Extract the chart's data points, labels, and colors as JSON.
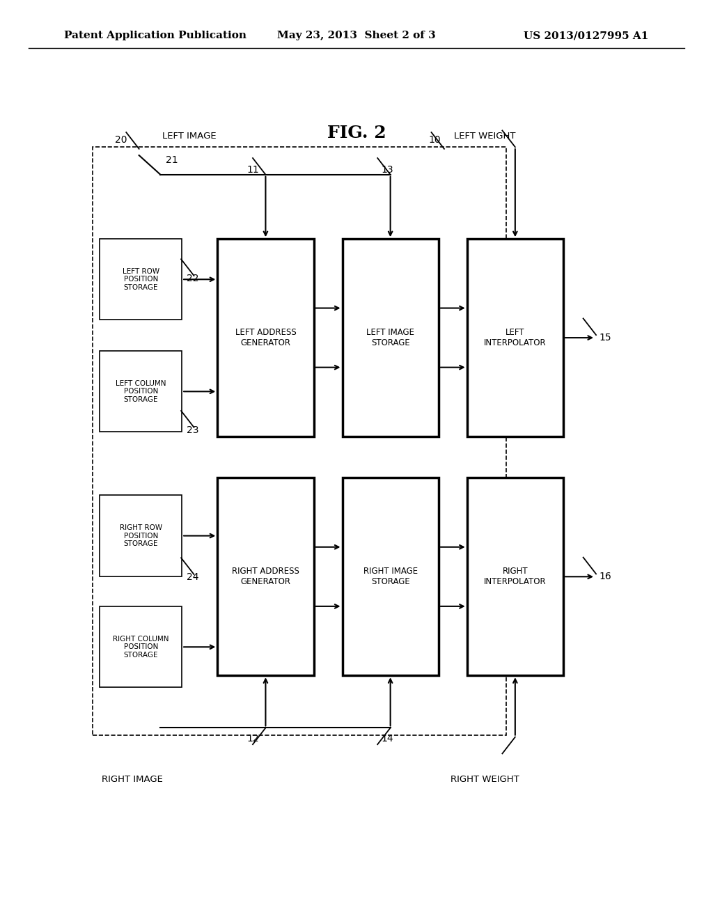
{
  "bg_color": "#ffffff",
  "header_left": "Patent Application Publication",
  "header_mid": "May 23, 2013  Sheet 2 of 3",
  "header_right": "US 2013/0127995 A1",
  "fig_title": "FIG. 2",
  "fig_title_fontsize": 18,
  "header_fontsize": 11
}
